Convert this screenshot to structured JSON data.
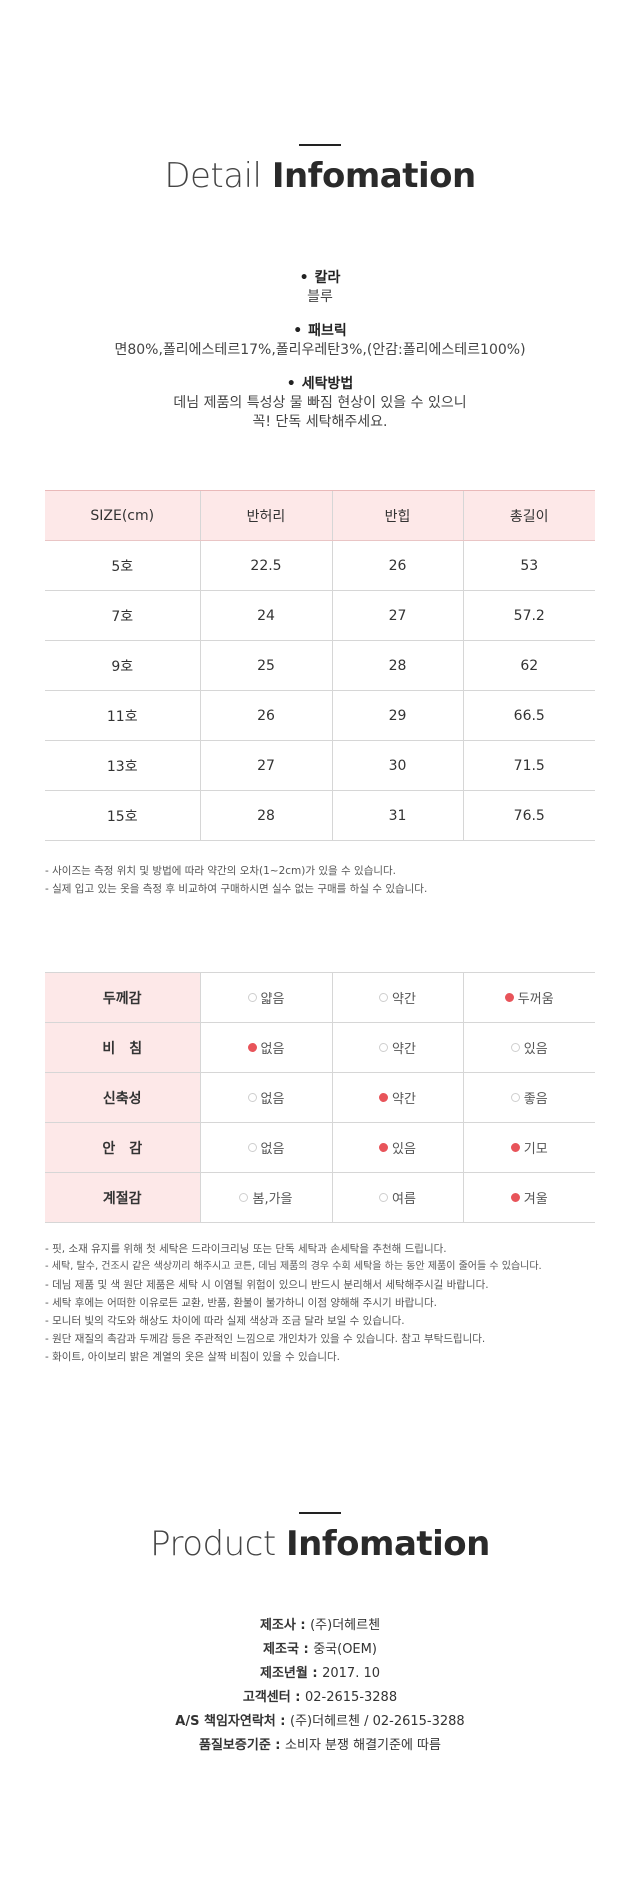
{
  "detail_header": {
    "light": "Detail",
    "bold": "Infomation"
  },
  "details": [
    {
      "label": "칼라",
      "value_lines": [
        "블루"
      ]
    },
    {
      "label": "패브릭",
      "value_lines": [
        "면80%,폴리에스테르17%,폴리우레탄3%,(안감:폴리에스테르100%)"
      ]
    },
    {
      "label": "세탁방법",
      "value_lines": [
        "데님 제품의 특성상 물 빠짐 현상이 있을 수 있으니",
        "꼭! 단독 세탁해주세요."
      ]
    }
  ],
  "size_table": {
    "headers": [
      "SIZE(cm)",
      "반허리",
      "반힙",
      "총길이"
    ],
    "rows": [
      [
        "5호",
        "22.5",
        "26",
        "53"
      ],
      [
        "7호",
        "24",
        "27",
        "57.2"
      ],
      [
        "9호",
        "25",
        "28",
        "62"
      ],
      [
        "11호",
        "26",
        "29",
        "66.5"
      ],
      [
        "13호",
        "27",
        "30",
        "71.5"
      ],
      [
        "15호",
        "28",
        "31",
        "76.5"
      ]
    ]
  },
  "size_notes": [
    "- 사이즈는 측정 위치 및 방법에 따라 약간의 오차(1~2cm)가 있을 수 있습니다.",
    "- 실제 입고 있는 옷을 측정 후 비교하여 구매하시면 실수 없는 구매를 하실 수 있습니다."
  ],
  "feel_table": {
    "rows": [
      {
        "label": "두께감",
        "options": [
          "얇음",
          "약간",
          "두꺼움"
        ],
        "selected": [
          2
        ]
      },
      {
        "label": "비　침",
        "options": [
          "없음",
          "약간",
          "있음"
        ],
        "selected": [
          0
        ]
      },
      {
        "label": "신축성",
        "options": [
          "없음",
          "약간",
          "좋음"
        ],
        "selected": [
          1
        ]
      },
      {
        "label": "안　감",
        "options": [
          "없음",
          "있음",
          "기모"
        ],
        "selected": [
          1,
          2
        ]
      },
      {
        "label": "계절감",
        "options": [
          "봄,가을",
          "여름",
          "겨울"
        ],
        "selected": [
          2
        ]
      }
    ]
  },
  "care_notes": [
    "- 핏, 소재 유지를 위해 첫 세탁은 드라이크리닝 또는 단독 세탁과 손세탁을 추천해 드립니다.",
    "- 세탁, 탈수, 건조시 같은 색상끼리 해주시고 코튼, 데님 제품의 경우 수회 세탁을 하는 동안 제품이 줄어들 수 있습니다.",
    "- 데님 제품 및 색 원단 제품은 세탁 시 이염될 위험이 있으니 반드시 분리해서 세탁해주시길 바랍니다.",
    "- 세탁 후에는 어떠한 이유로든 교환, 반품, 환불이 불가하니 이점 양해해 주시기 바랍니다.",
    "- 모니터 빛의 각도와 해상도 차이에 따라 실제 색상과 조금 달라 보일 수 있습니다.",
    "- 원단 재질의 촉감과 두께감 등은 주관적인 느낌으로 개인차가 있을 수 있습니다. 참고 부탁드립니다.",
    "- 화이트, 아이보리 밝은 계열의 옷은 살짝 비침이 있을 수 있습니다."
  ],
  "product_header": {
    "light": "Product",
    "bold": "Infomation"
  },
  "product_info": [
    {
      "key": "제조사",
      "value": "(주)더헤르첸"
    },
    {
      "key": "제조국",
      "value": "중국(OEM)"
    },
    {
      "key": "제조년월",
      "value": "2017. 10"
    },
    {
      "key": "고객센터",
      "value": "02-2615-3288"
    },
    {
      "key": "A/S 책임자연락처",
      "value": "(주)더헤르첸 / 02-2615-3288"
    },
    {
      "key": "품질보증기준",
      "value": "소비자 분쟁 해결기준에 따름"
    }
  ],
  "colors": {
    "accent_dot": "#e8545a",
    "header_bg": "#fde8e8"
  }
}
